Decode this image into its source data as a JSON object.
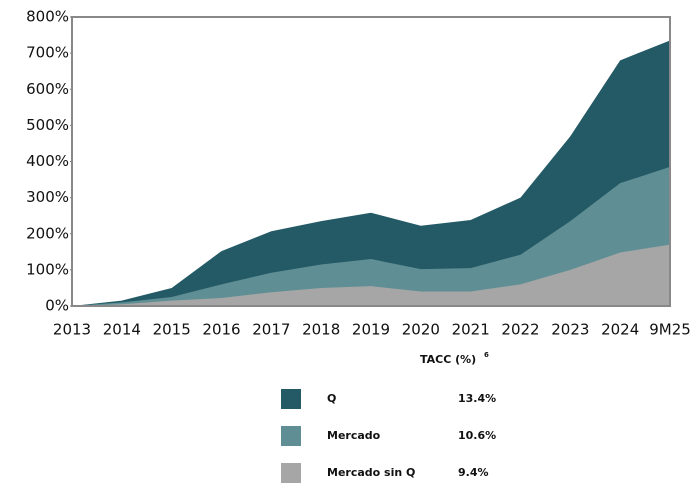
{
  "chart_data": {
    "type": "area",
    "categories": [
      "2013",
      "2014",
      "2015",
      "2016",
      "2017",
      "2018",
      "2019",
      "2020",
      "2021",
      "2022",
      "2023",
      "2024",
      "9M25"
    ],
    "series": [
      {
        "name": "Q",
        "color": "#235a66",
        "tacc": "13.4%",
        "values": [
          0,
          15,
          50,
          152,
          207,
          235,
          258,
          222,
          238,
          300,
          470,
          680,
          735
        ]
      },
      {
        "name": "Mercado",
        "color": "#5f8f94",
        "tacc": "10.6%",
        "values": [
          0,
          10,
          25,
          60,
          92,
          115,
          130,
          102,
          105,
          142,
          235,
          340,
          385
        ]
      },
      {
        "name": "Mercado sin Q",
        "color": "#a6a6a6",
        "tacc": "9.4%",
        "values": [
          0,
          5,
          15,
          22,
          38,
          50,
          55,
          40,
          40,
          60,
          100,
          148,
          170
        ]
      }
    ],
    "ylim": [
      0,
      800
    ],
    "yticks": [
      {
        "value": 0,
        "label": "0%"
      },
      {
        "value": 100,
        "label": "100%"
      },
      {
        "value": 200,
        "label": "200%"
      },
      {
        "value": 300,
        "label": "300%"
      },
      {
        "value": 400,
        "label": "400%"
      },
      {
        "value": 500,
        "label": "500%"
      },
      {
        "value": 600,
        "label": "600%"
      },
      {
        "value": 700,
        "label": "700%"
      },
      {
        "value": 800,
        "label": "800%"
      }
    ],
    "legend_title": "TACC (%)",
    "legend_title_note": "6"
  }
}
